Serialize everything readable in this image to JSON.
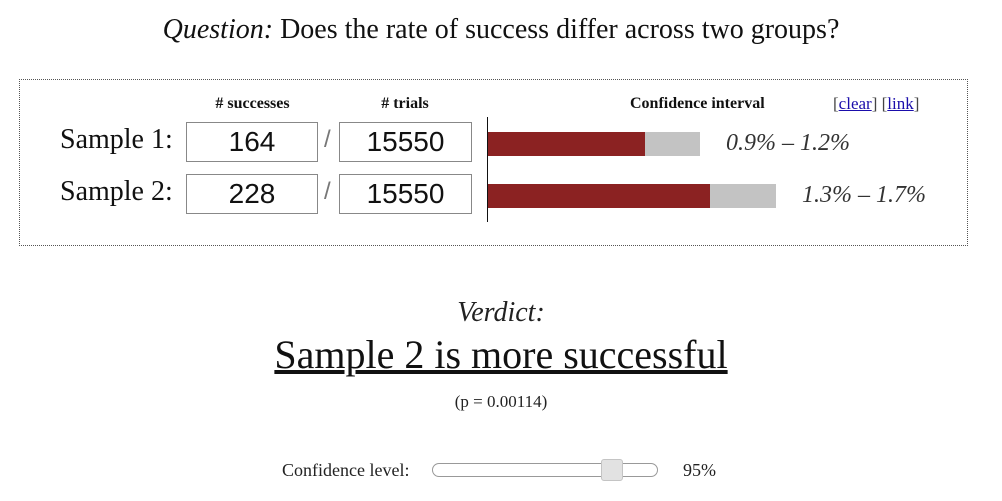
{
  "question": {
    "label": "Question:",
    "text": "Does the rate of success differ across two groups?"
  },
  "headers": {
    "successes": "# successes",
    "trials": "# trials",
    "confidence_interval": "Confidence interval"
  },
  "links": {
    "open1": "[",
    "clear": "clear",
    "close1": "] [",
    "link": "link",
    "close2": "]"
  },
  "samples": [
    {
      "label": "Sample 1:",
      "successes": "164",
      "trials": "15550",
      "ci_text": "0.9% – 1.2%",
      "ci_low_fraction": 0.74,
      "bar_color": "#8b2222"
    },
    {
      "label": "Sample 2:",
      "successes": "228",
      "trials": "15550",
      "ci_text": "1.3% – 1.7%",
      "ci_low_fraction": 0.77,
      "bar_color": "#8b2222"
    }
  ],
  "separator": "/",
  "verdict": {
    "label": "Verdict:",
    "text": "Sample 2 is more successful",
    "pvalue": "(p = 0.00114)"
  },
  "confidence": {
    "label": "Confidence level:",
    "value_text": "95%",
    "slider_fraction": 0.8
  }
}
